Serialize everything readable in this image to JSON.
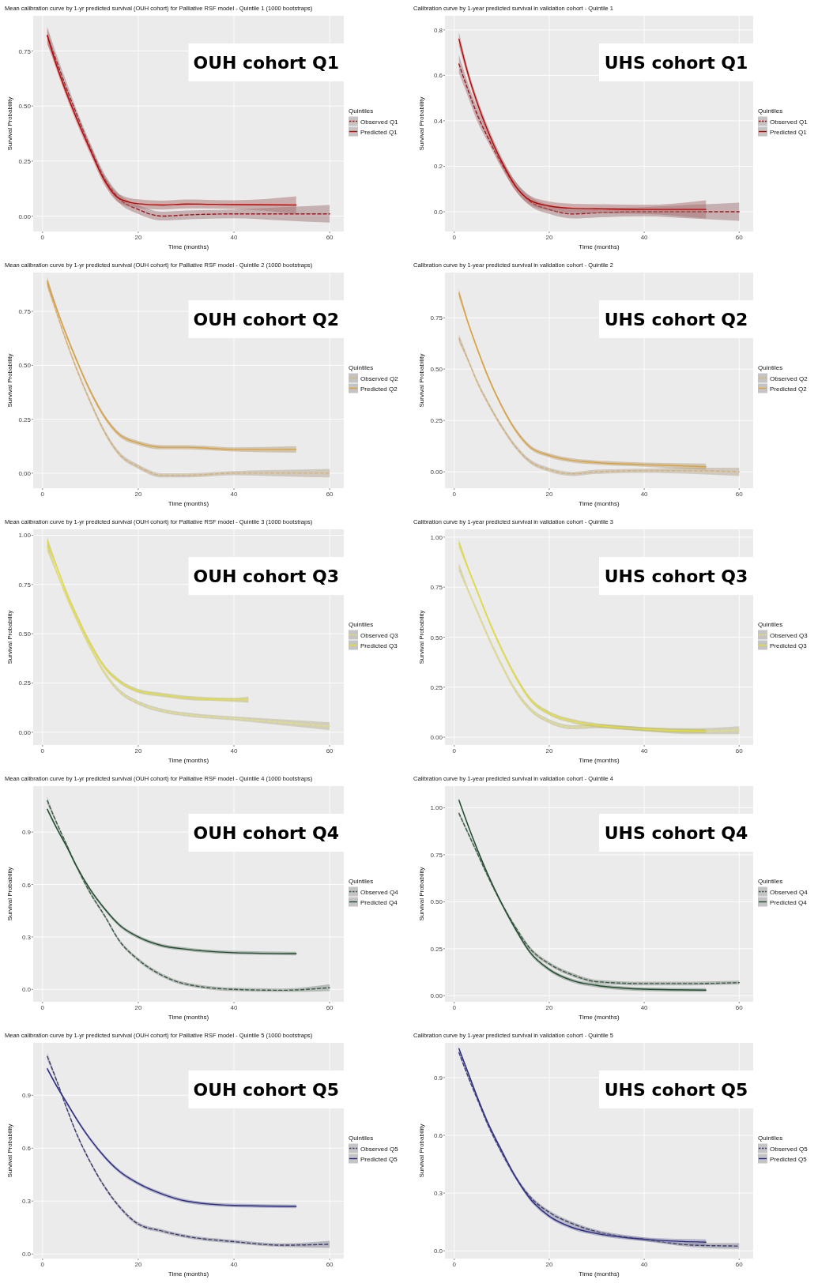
{
  "chart_data": [
    {
      "type": "line",
      "title": "Mean calibration curve by 1-yr predicted survival (OUH cohort) for Palliative RSF model - Quintile 1 (1000 bootstraps)",
      "xlabel": "Time (months)",
      "ylabel": "Survival Probability",
      "legend_title": "Quintiles",
      "annotations": [
        "OUH cohort Q1"
      ],
      "xlim": [
        -1.95,
        62.95
      ],
      "ylim": [
        -0.07,
        0.91
      ],
      "xticks": [
        0,
        20,
        40,
        60
      ],
      "yticks": [
        {
          "value": 0,
          "label": "0.00"
        },
        0.25,
        {
          "value": 0.5,
          "label": "0.50"
        },
        0.75
      ],
      "grid": true,
      "legend": "right",
      "series": [
        {
          "name": "Observed Q1",
          "color": "#a0141e",
          "line_style": "dashed",
          "x": [
            1,
            3,
            5,
            7,
            10,
            13,
            16,
            20,
            25,
            30,
            40,
            50,
            60
          ],
          "values": [
            0.82,
            0.7,
            0.58,
            0.47,
            0.31,
            0.17,
            0.08,
            0.03,
            0.0,
            0.005,
            0.01,
            0.01,
            0.01
          ],
          "lower": [
            0.78,
            0.67,
            0.55,
            0.45,
            0.29,
            0.15,
            0.06,
            0.01,
            -0.02,
            -0.015,
            -0.01,
            -0.02,
            -0.03
          ],
          "upper": [
            0.86,
            0.73,
            0.61,
            0.49,
            0.33,
            0.19,
            0.1,
            0.05,
            0.02,
            0.025,
            0.03,
            0.04,
            0.05
          ]
        },
        {
          "name": "Predicted Q1",
          "color": "#c00000",
          "line_style": "solid",
          "x": [
            1,
            3,
            5,
            7,
            10,
            13,
            16,
            20,
            25,
            30,
            40,
            53
          ],
          "values": [
            0.82,
            0.68,
            0.56,
            0.45,
            0.3,
            0.16,
            0.08,
            0.056,
            0.05,
            0.055,
            0.052,
            0.05
          ],
          "lower": [
            0.79,
            0.66,
            0.54,
            0.43,
            0.28,
            0.14,
            0.06,
            0.036,
            0.03,
            0.035,
            0.032,
            0.01
          ],
          "upper": [
            0.85,
            0.7,
            0.58,
            0.47,
            0.32,
            0.18,
            0.1,
            0.076,
            0.07,
            0.075,
            0.072,
            0.09
          ]
        }
      ]
    },
    {
      "type": "line",
      "title": "Calibration curve by 1-year predicted survival in validation cohort - Quintile 1",
      "xlabel": "Time (months)",
      "ylabel": "Survival Probability",
      "legend_title": "Quintiles",
      "annotations": [
        "UHS cohort Q1"
      ],
      "xlim": [
        -1.95,
        62.95
      ],
      "ylim": [
        -0.087,
        0.862
      ],
      "xticks": [
        0,
        20,
        40,
        60
      ],
      "yticks": [
        {
          "value": 0,
          "label": "0.0"
        },
        0.2,
        0.4,
        0.6,
        0.8
      ],
      "grid": true,
      "legend": "right",
      "series": [
        {
          "name": "Observed Q1",
          "color": "#a0141e",
          "line_style": "dashed",
          "x": [
            1,
            3,
            5,
            7,
            10,
            13,
            16,
            20,
            25,
            30,
            40,
            50,
            60
          ],
          "values": [
            0.65,
            0.53,
            0.42,
            0.33,
            0.21,
            0.11,
            0.045,
            0.01,
            -0.01,
            -0.005,
            0.0,
            0.0,
            0.0
          ],
          "lower": [
            0.61,
            0.5,
            0.39,
            0.31,
            0.19,
            0.09,
            0.025,
            -0.01,
            -0.03,
            -0.025,
            -0.02,
            -0.03,
            -0.04
          ],
          "upper": [
            0.69,
            0.56,
            0.45,
            0.35,
            0.23,
            0.13,
            0.065,
            0.03,
            0.01,
            0.015,
            0.02,
            0.03,
            0.04
          ]
        },
        {
          "name": "Predicted Q1",
          "color": "#c00000",
          "line_style": "solid",
          "x": [
            1,
            3,
            5,
            7,
            10,
            13,
            16,
            20,
            25,
            30,
            40,
            53
          ],
          "values": [
            0.76,
            0.6,
            0.47,
            0.36,
            0.22,
            0.11,
            0.05,
            0.025,
            0.015,
            0.013,
            0.01,
            0.01
          ],
          "lower": [
            0.73,
            0.58,
            0.45,
            0.34,
            0.2,
            0.09,
            0.03,
            0.005,
            -0.005,
            -0.007,
            -0.01,
            -0.03
          ],
          "upper": [
            0.79,
            0.62,
            0.49,
            0.38,
            0.24,
            0.13,
            0.07,
            0.045,
            0.035,
            0.033,
            0.03,
            0.05
          ]
        }
      ]
    },
    {
      "type": "line",
      "title": "Mean calibration curve by 1-yr predicted survival (OUH cohort) for Palliative RSF model - Quintile 2 (1000 bootstraps)",
      "xlabel": "Time (months)",
      "ylabel": "Survival Probability",
      "legend_title": "Quintiles",
      "annotations": [
        "OUH cohort Q2"
      ],
      "xlim": [
        -1.95,
        62.95
      ],
      "ylim": [
        -0.07,
        0.93
      ],
      "xticks": [
        0,
        20,
        40,
        60
      ],
      "yticks": [
        {
          "value": 0,
          "label": "0.00"
        },
        0.25,
        {
          "value": 0.5,
          "label": "0.50"
        },
        0.75
      ],
      "grid": true,
      "legend": "right",
      "series": [
        {
          "name": "Observed Q2",
          "color": "#d8b070",
          "line_style": "dashed",
          "x": [
            1,
            3,
            5,
            7,
            10,
            13,
            16,
            20,
            25,
            30,
            40,
            50,
            60
          ],
          "values": [
            0.88,
            0.74,
            0.61,
            0.49,
            0.33,
            0.19,
            0.09,
            0.03,
            -0.01,
            -0.01,
            0.0,
            0.0,
            0.0
          ],
          "lower": [
            0.86,
            0.73,
            0.6,
            0.48,
            0.32,
            0.18,
            0.08,
            0.02,
            -0.02,
            -0.02,
            -0.01,
            -0.015,
            -0.02
          ],
          "upper": [
            0.9,
            0.75,
            0.62,
            0.5,
            0.34,
            0.2,
            0.1,
            0.04,
            0.0,
            0.0,
            0.01,
            0.015,
            0.02
          ]
        },
        {
          "name": "Predicted Q2",
          "color": "#e0a030",
          "line_style": "solid",
          "x": [
            1,
            3,
            5,
            7,
            10,
            13,
            16,
            20,
            25,
            30,
            40,
            53
          ],
          "values": [
            0.89,
            0.76,
            0.64,
            0.53,
            0.38,
            0.26,
            0.18,
            0.14,
            0.12,
            0.12,
            0.11,
            0.11
          ],
          "lower": [
            0.87,
            0.75,
            0.63,
            0.52,
            0.37,
            0.25,
            0.17,
            0.13,
            0.11,
            0.11,
            0.1,
            0.095
          ],
          "upper": [
            0.91,
            0.77,
            0.65,
            0.54,
            0.39,
            0.27,
            0.19,
            0.15,
            0.13,
            0.13,
            0.12,
            0.125
          ]
        }
      ]
    },
    {
      "type": "line",
      "title": "Calibration curve by 1-year predicted survival in validation cohort - Quintile 2",
      "xlabel": "Time (months)",
      "ylabel": "Survival Probability",
      "legend_title": "Quintiles",
      "annotations": [
        "UHS cohort Q2"
      ],
      "xlim": [
        -1.95,
        62.95
      ],
      "ylim": [
        -0.08,
        0.97
      ],
      "xticks": [
        0,
        20,
        40,
        60
      ],
      "yticks": [
        {
          "value": 0,
          "label": "0.00"
        },
        0.25,
        {
          "value": 0.5,
          "label": "0.50"
        },
        0.75
      ],
      "grid": true,
      "legend": "right",
      "series": [
        {
          "name": "Observed Q2",
          "color": "#d8b070",
          "line_style": "dashed",
          "x": [
            1,
            3,
            5,
            7,
            10,
            13,
            16,
            20,
            25,
            30,
            40,
            50,
            60
          ],
          "values": [
            0.65,
            0.54,
            0.43,
            0.34,
            0.22,
            0.12,
            0.05,
            0.01,
            -0.01,
            0.0,
            0.005,
            0.005,
            0.0
          ],
          "lower": [
            0.63,
            0.53,
            0.42,
            0.33,
            0.21,
            0.11,
            0.04,
            0.0,
            -0.02,
            -0.01,
            -0.005,
            -0.01,
            -0.02
          ],
          "upper": [
            0.67,
            0.55,
            0.44,
            0.35,
            0.23,
            0.13,
            0.06,
            0.02,
            0.0,
            0.01,
            0.015,
            0.02,
            0.02
          ]
        },
        {
          "name": "Predicted Q2",
          "color": "#e0a030",
          "line_style": "solid",
          "x": [
            1,
            3,
            5,
            7,
            10,
            13,
            16,
            20,
            25,
            30,
            40,
            53
          ],
          "values": [
            0.87,
            0.72,
            0.59,
            0.47,
            0.32,
            0.2,
            0.12,
            0.08,
            0.055,
            0.045,
            0.035,
            0.025
          ],
          "lower": [
            0.85,
            0.71,
            0.58,
            0.46,
            0.31,
            0.19,
            0.11,
            0.07,
            0.045,
            0.035,
            0.025,
            0.01
          ],
          "upper": [
            0.89,
            0.73,
            0.6,
            0.48,
            0.33,
            0.21,
            0.13,
            0.09,
            0.065,
            0.055,
            0.045,
            0.04
          ]
        }
      ]
    },
    {
      "type": "line",
      "title": "Mean calibration curve by 1-yr predicted survival (OUH cohort) for Palliative RSF model - Quintile 3 (1000 bootstraps)",
      "xlabel": "Time (months)",
      "ylabel": "Survival Probability",
      "legend_title": "Quintiles",
      "annotations": [
        "OUH cohort Q3"
      ],
      "xlim": [
        -1.95,
        62.95
      ],
      "ylim": [
        -0.065,
        1.03
      ],
      "xticks": [
        0,
        20,
        40,
        60
      ],
      "yticks": [
        {
          "value": 0,
          "label": "0.00"
        },
        0.25,
        {
          "value": 0.5,
          "label": "0.50"
        },
        0.75,
        {
          "value": 1,
          "label": "1.00"
        }
      ],
      "grid": true,
      "legend": "right",
      "series": [
        {
          "name": "Observed Q3",
          "color": "#e8e070",
          "line_style": "dashed",
          "x": [
            1,
            3,
            5,
            7,
            10,
            13,
            16,
            20,
            25,
            30,
            40,
            50,
            60
          ],
          "values": [
            0.94,
            0.81,
            0.69,
            0.58,
            0.43,
            0.3,
            0.21,
            0.15,
            0.11,
            0.09,
            0.07,
            0.05,
            0.03
          ],
          "lower": [
            0.92,
            0.8,
            0.68,
            0.57,
            0.42,
            0.29,
            0.2,
            0.14,
            0.1,
            0.08,
            0.06,
            0.035,
            0.01
          ],
          "upper": [
            0.96,
            0.82,
            0.7,
            0.59,
            0.44,
            0.31,
            0.22,
            0.16,
            0.12,
            0.1,
            0.08,
            0.065,
            0.05
          ]
        },
        {
          "name": "Predicted Q3",
          "color": "#e6e020",
          "line_style": "solid",
          "x": [
            1,
            3,
            5,
            7,
            10,
            13,
            16,
            20,
            25,
            30,
            40,
            43
          ],
          "values": [
            0.97,
            0.84,
            0.71,
            0.6,
            0.45,
            0.33,
            0.26,
            0.21,
            0.19,
            0.175,
            0.165,
            0.165
          ],
          "lower": [
            0.95,
            0.83,
            0.7,
            0.59,
            0.44,
            0.32,
            0.25,
            0.2,
            0.18,
            0.165,
            0.155,
            0.15
          ],
          "upper": [
            0.99,
            0.85,
            0.72,
            0.61,
            0.46,
            0.34,
            0.27,
            0.22,
            0.2,
            0.185,
            0.175,
            0.18
          ]
        }
      ]
    },
    {
      "type": "line",
      "title": "Calibration curve by 1-year predicted survival in validation cohort - Quintile 3",
      "xlabel": "Time (months)",
      "ylabel": "Survival Probability",
      "legend_title": "Quintiles",
      "annotations": [
        "UHS cohort Q3"
      ],
      "xlim": [
        -1.95,
        62.95
      ],
      "ylim": [
        -0.039,
        1.039
      ],
      "xticks": [
        0,
        20,
        40,
        60
      ],
      "yticks": [
        {
          "value": 0,
          "label": "0.00"
        },
        0.25,
        {
          "value": 0.5,
          "label": "0.50"
        },
        0.75,
        {
          "value": 1,
          "label": "1.00"
        }
      ],
      "grid": true,
      "legend": "right",
      "series": [
        {
          "name": "Observed Q3",
          "color": "#e8e070",
          "line_style": "dashed",
          "x": [
            1,
            3,
            5,
            7,
            10,
            13,
            16,
            20,
            25,
            30,
            40,
            50,
            60
          ],
          "values": [
            0.85,
            0.73,
            0.62,
            0.51,
            0.36,
            0.23,
            0.14,
            0.08,
            0.05,
            0.055,
            0.04,
            0.03,
            0.035
          ],
          "lower": [
            0.83,
            0.72,
            0.61,
            0.5,
            0.35,
            0.22,
            0.13,
            0.07,
            0.04,
            0.045,
            0.03,
            0.015,
            0.015
          ],
          "upper": [
            0.87,
            0.74,
            0.63,
            0.52,
            0.37,
            0.24,
            0.15,
            0.09,
            0.06,
            0.065,
            0.05,
            0.045,
            0.055
          ]
        },
        {
          "name": "Predicted Q3",
          "color": "#e6e020",
          "line_style": "solid",
          "x": [
            1,
            3,
            5,
            7,
            10,
            13,
            16,
            20,
            25,
            30,
            40,
            53
          ],
          "values": [
            0.97,
            0.84,
            0.72,
            0.6,
            0.44,
            0.3,
            0.19,
            0.12,
            0.08,
            0.06,
            0.04,
            0.03
          ],
          "lower": [
            0.95,
            0.83,
            0.71,
            0.59,
            0.43,
            0.29,
            0.18,
            0.11,
            0.07,
            0.05,
            0.03,
            0.02
          ],
          "upper": [
            0.99,
            0.85,
            0.73,
            0.61,
            0.45,
            0.31,
            0.2,
            0.13,
            0.09,
            0.07,
            0.05,
            0.04
          ]
        }
      ]
    },
    {
      "type": "line",
      "title": "Mean calibration curve by 1-yr predicted survival (OUH cohort) for Palliative RSF model - Quintile 4 (1000 bootstraps)",
      "xlabel": "Time (months)",
      "ylabel": "Survival Probability",
      "legend_title": "Quintiles",
      "annotations": [
        "OUH cohort Q4"
      ],
      "xlim": [
        -1.95,
        62.95
      ],
      "ylim": [
        -0.071,
        1.163
      ],
      "xticks": [
        0,
        20,
        40,
        60
      ],
      "yticks": [
        {
          "value": 0,
          "label": "0.0"
        },
        0.3,
        0.6,
        0.9
      ],
      "grid": true,
      "legend": "right",
      "series": [
        {
          "name": "Observed Q4",
          "color": "#3a5a44",
          "line_style": "dashed",
          "x": [
            1,
            3,
            5,
            7,
            10,
            13,
            16,
            20,
            25,
            30,
            40,
            50,
            60
          ],
          "values": [
            1.08,
            0.95,
            0.83,
            0.71,
            0.55,
            0.42,
            0.28,
            0.17,
            0.08,
            0.03,
            0.0,
            -0.005,
            0.01
          ],
          "lower": [
            1.06,
            0.94,
            0.82,
            0.7,
            0.54,
            0.41,
            0.27,
            0.16,
            0.07,
            0.02,
            -0.01,
            -0.015,
            -0.01
          ],
          "upper": [
            1.1,
            0.96,
            0.84,
            0.72,
            0.56,
            0.43,
            0.29,
            0.18,
            0.09,
            0.04,
            0.01,
            0.005,
            0.03
          ]
        },
        {
          "name": "Predicted Q4",
          "color": "#1f4d2e",
          "line_style": "solid",
          "x": [
            1,
            3,
            5,
            7,
            10,
            13,
            16,
            20,
            25,
            30,
            40,
            53
          ],
          "values": [
            1.03,
            0.92,
            0.82,
            0.71,
            0.57,
            0.46,
            0.37,
            0.3,
            0.25,
            0.23,
            0.21,
            0.205
          ],
          "lower": [
            1.02,
            0.91,
            0.81,
            0.7,
            0.56,
            0.45,
            0.36,
            0.29,
            0.24,
            0.22,
            0.2,
            0.195
          ],
          "upper": [
            1.04,
            0.93,
            0.83,
            0.72,
            0.58,
            0.47,
            0.38,
            0.31,
            0.26,
            0.24,
            0.22,
            0.215
          ]
        }
      ]
    },
    {
      "type": "line",
      "title": "Calibration curve by 1-year predicted survival in validation cohort - Quintile 4",
      "xlabel": "Time (months)",
      "ylabel": "Survival Probability",
      "legend_title": "Quintiles",
      "annotations": [
        "UHS cohort Q4"
      ],
      "xlim": [
        -1.95,
        62.95
      ],
      "ylim": [
        -0.032,
        1.115
      ],
      "xticks": [
        0,
        20,
        40,
        60
      ],
      "yticks": [
        {
          "value": 0,
          "label": "0.00"
        },
        0.25,
        {
          "value": 0.5,
          "label": "0.50"
        },
        0.75,
        {
          "value": 1,
          "label": "1.00"
        }
      ],
      "grid": true,
      "legend": "right",
      "series": [
        {
          "name": "Observed Q4",
          "color": "#3a5a44",
          "line_style": "dashed",
          "x": [
            1,
            3,
            5,
            7,
            10,
            13,
            16,
            20,
            25,
            30,
            40,
            50,
            60
          ],
          "values": [
            0.97,
            0.86,
            0.75,
            0.64,
            0.49,
            0.36,
            0.25,
            0.17,
            0.11,
            0.075,
            0.065,
            0.065,
            0.07
          ],
          "lower": [
            0.96,
            0.85,
            0.74,
            0.63,
            0.48,
            0.35,
            0.24,
            0.16,
            0.1,
            0.065,
            0.055,
            0.055,
            0.06
          ],
          "upper": [
            0.98,
            0.87,
            0.76,
            0.65,
            0.5,
            0.37,
            0.26,
            0.18,
            0.12,
            0.085,
            0.075,
            0.075,
            0.08
          ]
        },
        {
          "name": "Predicted Q4",
          "color": "#1f4d2e",
          "line_style": "solid",
          "x": [
            1,
            3,
            5,
            7,
            10,
            13,
            16,
            20,
            25,
            30,
            40,
            53
          ],
          "values": [
            1.04,
            0.9,
            0.77,
            0.65,
            0.49,
            0.35,
            0.23,
            0.14,
            0.08,
            0.055,
            0.035,
            0.03
          ],
          "lower": [
            1.03,
            0.89,
            0.76,
            0.64,
            0.48,
            0.34,
            0.22,
            0.13,
            0.07,
            0.045,
            0.025,
            0.02
          ],
          "upper": [
            1.05,
            0.91,
            0.78,
            0.66,
            0.5,
            0.36,
            0.24,
            0.15,
            0.09,
            0.065,
            0.045,
            0.04
          ]
        }
      ]
    },
    {
      "type": "line",
      "title": "Mean calibration curve by 1-yr predicted survival (OUH cohort) for Palliative RSF model - Quintile 5 (1000 bootstraps)",
      "xlabel": "Time (months)",
      "ylabel": "Survival Probability",
      "legend_title": "Quintiles",
      "annotations": [
        "OUH cohort Q5"
      ],
      "xlim": [
        -1.95,
        62.95
      ],
      "ylim": [
        -0.026,
        1.197
      ],
      "xticks": [
        0,
        20,
        40,
        60
      ],
      "yticks": [
        {
          "value": 0,
          "label": "0.0"
        },
        0.3,
        0.6,
        0.9
      ],
      "grid": true,
      "legend": "right",
      "series": [
        {
          "name": "Observed Q5",
          "color": "#3c3c70",
          "line_style": "dashed",
          "x": [
            1,
            3,
            5,
            7,
            10,
            13,
            16,
            20,
            25,
            30,
            40,
            50,
            60
          ],
          "values": [
            1.12,
            0.98,
            0.83,
            0.69,
            0.52,
            0.38,
            0.27,
            0.17,
            0.13,
            0.1,
            0.07,
            0.05,
            0.055
          ],
          "lower": [
            1.1,
            0.97,
            0.82,
            0.68,
            0.51,
            0.37,
            0.26,
            0.16,
            0.12,
            0.09,
            0.06,
            0.04,
            0.035
          ],
          "upper": [
            1.14,
            0.99,
            0.84,
            0.7,
            0.53,
            0.39,
            0.28,
            0.18,
            0.14,
            0.11,
            0.08,
            0.06,
            0.075
          ]
        },
        {
          "name": "Predicted Q5",
          "color": "#2a2a8c",
          "line_style": "solid",
          "x": [
            1,
            3,
            5,
            7,
            10,
            13,
            16,
            20,
            25,
            30,
            40,
            53
          ],
          "values": [
            1.05,
            0.95,
            0.86,
            0.77,
            0.65,
            0.55,
            0.47,
            0.4,
            0.34,
            0.3,
            0.275,
            0.27
          ],
          "lower": [
            1.04,
            0.94,
            0.85,
            0.76,
            0.64,
            0.54,
            0.46,
            0.39,
            0.33,
            0.29,
            0.265,
            0.26
          ],
          "upper": [
            1.06,
            0.96,
            0.87,
            0.78,
            0.66,
            0.56,
            0.48,
            0.41,
            0.35,
            0.31,
            0.285,
            0.28
          ]
        }
      ]
    },
    {
      "type": "line",
      "title": "Calibration curve by 1-year predicted survival in validation cohort - Quintile 5",
      "xlabel": "Time (months)",
      "ylabel": "Survival Probability",
      "legend_title": "Quintiles",
      "annotations": [
        "UHS cohort Q5"
      ],
      "xlim": [
        -1.95,
        62.95
      ],
      "ylim": [
        -0.04,
        1.08
      ],
      "xticks": [
        0,
        20,
        40,
        60
      ],
      "yticks": [
        {
          "value": 0,
          "label": "0.0"
        },
        0.3,
        0.6,
        0.9
      ],
      "grid": true,
      "legend": "right",
      "series": [
        {
          "name": "Observed Q5",
          "color": "#3c3c70",
          "line_style": "dashed",
          "x": [
            1,
            3,
            5,
            7,
            10,
            13,
            16,
            20,
            25,
            30,
            40,
            50,
            60
          ],
          "values": [
            1.03,
            0.9,
            0.78,
            0.66,
            0.51,
            0.38,
            0.28,
            0.2,
            0.14,
            0.1,
            0.06,
            0.03,
            0.025
          ],
          "lower": [
            1.02,
            0.89,
            0.77,
            0.65,
            0.5,
            0.37,
            0.27,
            0.19,
            0.13,
            0.09,
            0.05,
            0.02,
            0.01
          ],
          "upper": [
            1.04,
            0.91,
            0.79,
            0.67,
            0.52,
            0.39,
            0.29,
            0.21,
            0.15,
            0.11,
            0.07,
            0.04,
            0.04
          ]
        },
        {
          "name": "Predicted Q5",
          "color": "#2a2a8c",
          "line_style": "solid",
          "x": [
            1,
            3,
            5,
            7,
            10,
            13,
            16,
            20,
            25,
            30,
            40,
            53
          ],
          "values": [
            1.05,
            0.92,
            0.79,
            0.67,
            0.52,
            0.38,
            0.27,
            0.18,
            0.12,
            0.09,
            0.06,
            0.045
          ],
          "lower": [
            1.04,
            0.91,
            0.78,
            0.66,
            0.51,
            0.37,
            0.26,
            0.17,
            0.11,
            0.08,
            0.05,
            0.03
          ],
          "upper": [
            1.06,
            0.93,
            0.8,
            0.68,
            0.53,
            0.39,
            0.28,
            0.19,
            0.13,
            0.1,
            0.07,
            0.06
          ]
        }
      ]
    }
  ]
}
